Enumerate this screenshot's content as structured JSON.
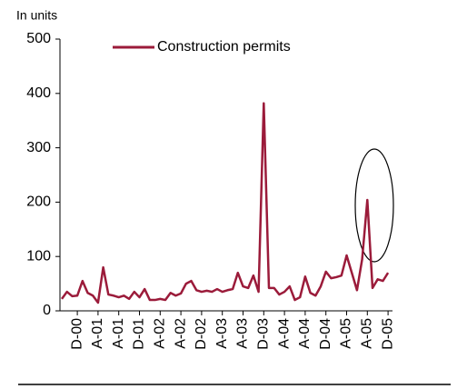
{
  "chart_data": {
    "type": "line",
    "unit_label": "In units",
    "categories": [
      null,
      null,
      null,
      "D-00",
      null,
      null,
      null,
      "A-01",
      null,
      null,
      null,
      "A-01",
      null,
      null,
      null,
      "D-01",
      null,
      null,
      null,
      "A-02",
      null,
      null,
      null,
      "A-02",
      null,
      null,
      null,
      "D-02",
      null,
      null,
      null,
      "A-03",
      null,
      null,
      null,
      "A-03",
      null,
      null,
      null,
      "D-03",
      null,
      null,
      null,
      "A-04",
      null,
      null,
      null,
      "A-04",
      null,
      null,
      null,
      "D-04",
      null,
      null,
      null,
      "A-05",
      null,
      null,
      null,
      "A-05",
      null,
      null,
      null,
      "D-05"
    ],
    "series": [
      {
        "name": "Construction permits",
        "color": "#9b1b3a",
        "values": [
          22,
          35,
          27,
          28,
          55,
          33,
          28,
          15,
          80,
          30,
          28,
          25,
          28,
          22,
          35,
          25,
          40,
          20,
          20,
          22,
          20,
          33,
          28,
          32,
          50,
          55,
          38,
          35,
          37,
          35,
          40,
          35,
          38,
          40,
          70,
          45,
          42,
          65,
          35,
          382,
          42,
          42,
          30,
          35,
          45,
          20,
          25,
          63,
          33,
          28,
          45,
          72,
          60,
          62,
          65,
          102,
          70,
          38,
          95,
          204,
          42,
          58,
          55,
          70
        ]
      }
    ],
    "ylim": [
      0,
      500
    ],
    "yticks": [
      0,
      100,
      200,
      300,
      400,
      500
    ],
    "legend": "top"
  }
}
